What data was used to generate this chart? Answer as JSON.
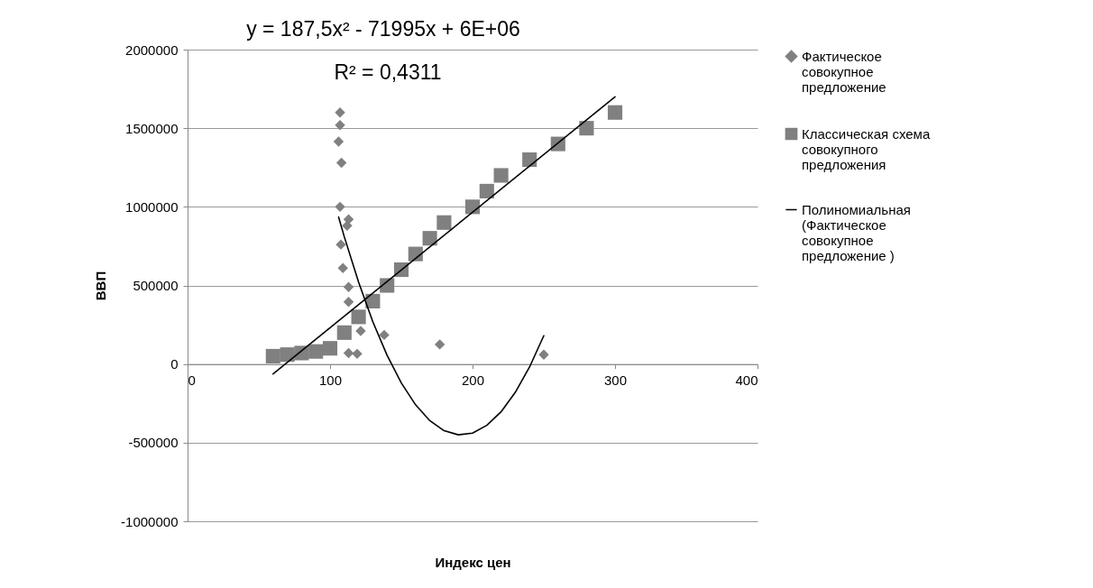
{
  "chart_data": {
    "type": "scatter",
    "xlabel": "Индекс цен",
    "ylabel": "ВВП",
    "xlim": [
      0,
      400
    ],
    "xticks": [
      0,
      100,
      200,
      300,
      400
    ],
    "ylim": [
      -1000000,
      2000000
    ],
    "yticks": [
      -1000000,
      -500000,
      0,
      500000,
      1000000,
      1500000,
      2000000
    ],
    "grid": "y",
    "legend": "right",
    "annotations": [
      "y = 187,5x² - 71995x + 6E+06",
      "R² = 0,4311"
    ],
    "series": [
      {
        "name": "Фактическое совокупное предложение",
        "marker": "diamond",
        "color": "#808080",
        "x": [
          107,
          107,
          106,
          108,
          107,
          113,
          112,
          107.6,
          109,
          113,
          113,
          121.5,
          138,
          113,
          119,
          177,
          250
        ],
        "values": [
          1600000,
          1520000,
          1415000,
          1280000,
          1000000,
          920000,
          880000,
          760000,
          610000,
          490000,
          395000,
          210000,
          185000,
          70000,
          65000,
          125000,
          60000
        ]
      },
      {
        "name": "Классическая схема совокупного предложения",
        "marker": "square",
        "color": "#808080",
        "x": [
          60,
          70,
          80,
          90,
          100,
          110,
          120,
          130,
          140,
          150,
          160,
          170,
          180,
          200,
          210,
          220,
          240,
          260,
          280,
          300
        ],
        "values": [
          50000,
          60000,
          70000,
          80000,
          100000,
          200000,
          300000,
          400000,
          500000,
          600000,
          700000,
          800000,
          900000,
          1000000,
          1100000,
          1200000,
          1300000,
          1400000,
          1500000,
          1600000
        ]
      },
      {
        "name": "Полиномиальная (Фактическое совокупное предложение )",
        "type": "line",
        "marker": "none",
        "color": "#000000",
        "x": [
          106,
          110,
          120,
          130,
          140,
          150,
          160,
          170,
          180,
          190,
          200,
          210,
          220,
          230,
          240,
          250
        ],
        "values": [
          935000,
          809000,
          521000,
          269000,
          56000,
          -120000,
          -259000,
          -360000,
          -424000,
          -450000,
          -439000,
          -390000,
          -304000,
          -180000,
          -19000,
          180000
        ]
      },
      {
        "type": "line",
        "marker": "none",
        "color": "#000000",
        "x": [
          60,
          300
        ],
        "values": [
          -63000,
          1700000
        ]
      }
    ]
  }
}
